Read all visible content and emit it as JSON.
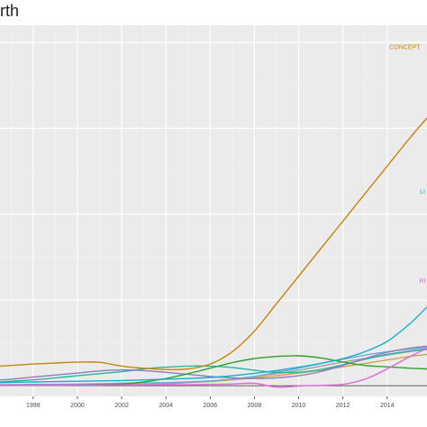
{
  "chart_data": {
    "type": "line",
    "title": "rth",
    "xlabel": "",
    "ylabel": "",
    "x_ticks": [
      1998,
      2000,
      2002,
      2004,
      2006,
      2008,
      2010,
      2012,
      2014
    ],
    "xlim": [
      1996.5,
      2015.8
    ],
    "ylim": [
      -0.03,
      1.05
    ],
    "grid": true,
    "background": "#ebebeb",
    "x": [
      1996.5,
      1997,
      1998,
      1999,
      2000,
      2001,
      2002,
      2003,
      2004,
      2005,
      2006,
      2007,
      2008,
      2009,
      2010,
      2011,
      2012,
      2013,
      2014,
      2015,
      2015.8
    ],
    "series": [
      {
        "name": "CONCEPT",
        "color": "#c8860a",
        "label_pos": [
          2014.8,
          0.98
        ],
        "values": [
          0.058,
          0.06,
          0.064,
          0.067,
          0.07,
          0.069,
          0.058,
          0.052,
          0.048,
          0.05,
          0.064,
          0.1,
          0.16,
          0.24,
          0.32,
          0.4,
          0.48,
          0.56,
          0.64,
          0.72,
          0.78
        ]
      },
      {
        "name": "LI",
        "color": "#12b0c8",
        "label_pos": [
          2015.6,
          0.56
        ],
        "values": [
          0.01,
          0.011,
          0.012,
          0.013,
          0.014,
          0.015,
          0.016,
          0.018,
          0.02,
          0.022,
          0.025,
          0.03,
          0.037,
          0.045,
          0.055,
          0.066,
          0.08,
          0.1,
          0.13,
          0.18,
          0.23
        ]
      },
      {
        "name": "RI",
        "color": "#e066d8",
        "label_pos": [
          2015.6,
          0.3
        ],
        "values": [
          0.003,
          0.003,
          0.003,
          0.003,
          0.003,
          0.003,
          0.003,
          0.003,
          0.004,
          0.004,
          0.005,
          0.006,
          0.008,
          -0.003,
          0.0,
          0.002,
          0.005,
          0.02,
          0.05,
          0.085,
          0.11
        ]
      },
      {
        "name": "",
        "color": "#33a02c",
        "label_pos": null,
        "values": [
          0.003,
          0.003,
          0.003,
          0.003,
          0.003,
          0.004,
          0.006,
          0.012,
          0.022,
          0.036,
          0.052,
          0.068,
          0.08,
          0.086,
          0.088,
          0.082,
          0.07,
          0.06,
          0.056,
          0.052,
          0.05
        ]
      },
      {
        "name": "",
        "color": "#8e7cc3",
        "label_pos": null,
        "values": [
          0.018,
          0.02,
          0.026,
          0.032,
          0.038,
          0.044,
          0.047,
          0.045,
          0.04,
          0.034,
          0.028,
          0.024,
          0.022,
          0.024,
          0.03,
          0.042,
          0.06,
          0.08,
          0.098,
          0.11,
          0.116
        ]
      },
      {
        "name": "",
        "color": "#2bb3a0",
        "label_pos": null,
        "values": [
          0.012,
          0.014,
          0.018,
          0.024,
          0.03,
          0.036,
          0.042,
          0.05,
          0.055,
          0.058,
          0.058,
          0.054,
          0.046,
          0.04,
          0.04,
          0.048,
          0.062,
          0.078,
          0.092,
          0.102,
          0.108
        ]
      },
      {
        "name": "",
        "color": "#6fa8dc",
        "label_pos": null,
        "values": [
          0.004,
          0.004,
          0.005,
          0.005,
          0.006,
          0.007,
          0.008,
          0.009,
          0.01,
          0.012,
          0.015,
          0.02,
          0.028,
          0.04,
          0.052,
          0.066,
          0.078,
          0.09,
          0.1,
          0.108,
          0.112
        ]
      },
      {
        "name": "",
        "color": "#a0a0a0",
        "label_pos": null,
        "values": [
          0.002,
          0.002,
          0.002,
          0.002,
          0.003,
          0.003,
          0.004,
          0.005,
          0.007,
          0.01,
          0.014,
          0.02,
          0.028,
          0.036,
          0.046,
          0.058,
          0.07,
          0.08,
          0.09,
          0.1,
          0.106
        ]
      },
      {
        "name": "",
        "color": "#d6a04a",
        "label_pos": null,
        "values": [
          0.002,
          0.002,
          0.002,
          0.002,
          0.003,
          0.003,
          0.004,
          0.005,
          0.007,
          0.01,
          0.013,
          0.018,
          0.024,
          0.03,
          0.038,
          0.046,
          0.056,
          0.066,
          0.076,
          0.086,
          0.092
        ]
      },
      {
        "name": "",
        "color": "#444444",
        "label_pos": null,
        "values": [
          0.001,
          0.001,
          0.001,
          0.001,
          0.001,
          0.001,
          0.001,
          0.001,
          0.001,
          0.001,
          0.001,
          0.001,
          0.001,
          0.001,
          0.001,
          0.001,
          0.001,
          0.001,
          0.001,
          0.001,
          0.001
        ]
      }
    ]
  }
}
